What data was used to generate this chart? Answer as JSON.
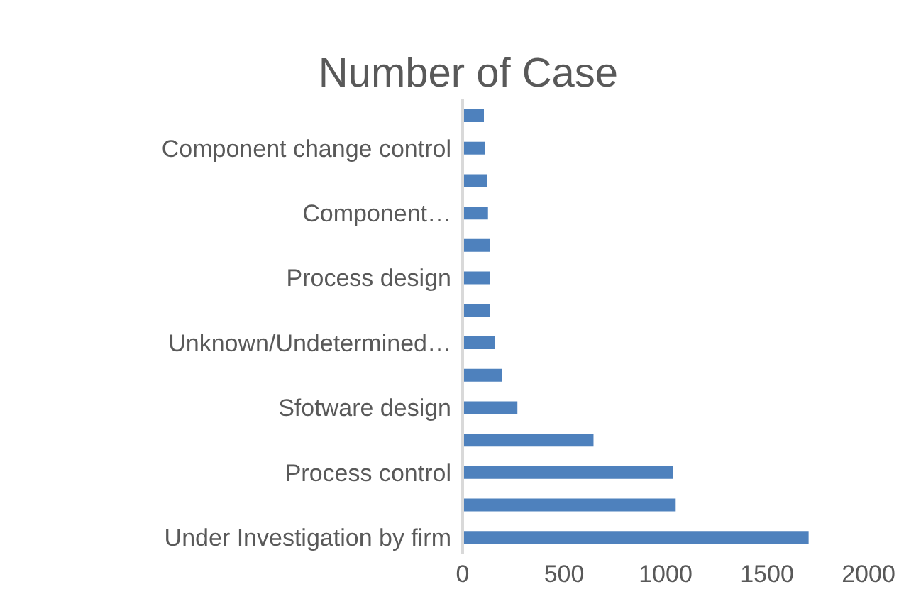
{
  "chart_data": {
    "type": "bar",
    "orientation": "horizontal",
    "title": "Number of Case",
    "categories": [
      null,
      "Component change control",
      null,
      "Component…",
      null,
      "Process design",
      null,
      "Unknown/Undetermined…",
      null,
      "Sfotware design",
      null,
      "Process control",
      null,
      "Under Investigation by firm"
    ],
    "values": [
      105,
      110,
      120,
      125,
      135,
      135,
      135,
      160,
      195,
      270,
      645,
      1035,
      1050,
      1705
    ],
    "color": "#4e81bd",
    "xlim": [
      0,
      2000
    ],
    "xticks": [
      0,
      500,
      1000,
      1500,
      2000
    ],
    "grid": false,
    "legend": false
  }
}
